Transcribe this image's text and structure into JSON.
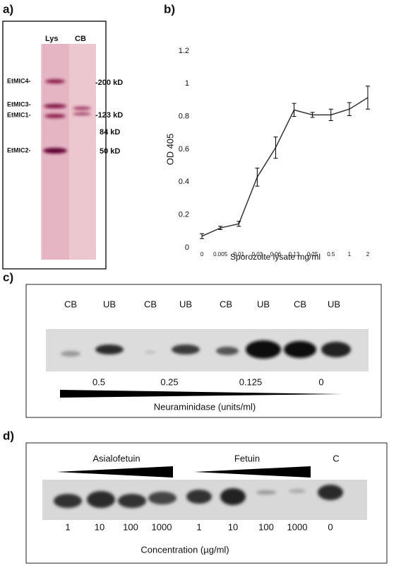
{
  "panel_labels": [
    "a)",
    "b)",
    "c)",
    "d)"
  ],
  "blot_a": {
    "lanes": [
      "Lys",
      "CB"
    ],
    "proteins": [
      "EtMIC4-",
      "EtMIC3-",
      "EtMIC1-",
      "EtMIC2-"
    ],
    "markers": [
      "-200 kD",
      "-123 kD",
      "84 kD",
      "50 kD"
    ]
  },
  "chart_data": {
    "type": "line",
    "x_label": "Sporozoite lysate mg/ml",
    "y_label": "OD 405",
    "categories": [
      "0",
      "0.005",
      "0.01",
      "0.03",
      "0.06",
      "0.13",
      "0.25",
      "0.5",
      "1",
      "2"
    ],
    "values": [
      0.07,
      0.12,
      0.145,
      0.43,
      0.61,
      0.84,
      0.81,
      0.81,
      0.845,
      0.915
    ],
    "errors": [
      0.015,
      0.01,
      0.015,
      0.055,
      0.065,
      0.04,
      0.015,
      0.035,
      0.04,
      0.07
    ],
    "color": "#333333",
    "ylim": [
      0,
      1.2
    ],
    "yticks": [
      0,
      0.2,
      0.4,
      0.6,
      0.8,
      1,
      1.2
    ],
    "grid": false
  },
  "blot_c": {
    "lanes": [
      "CB",
      "UB",
      "CB",
      "UB",
      "CB",
      "UB",
      "CB",
      "UB"
    ],
    "concentrations": [
      "0.5",
      "0.25",
      "0.125",
      "0"
    ],
    "label": "Neuraminidase (units/ml)"
  },
  "blot_d": {
    "groups": [
      "Asialofetuin",
      "Fetuin",
      "C"
    ],
    "concentrations": [
      "1",
      "10",
      "100",
      "1000",
      "1",
      "10",
      "100",
      "1000",
      "0"
    ],
    "label": "Concentration (µg/ml)"
  }
}
